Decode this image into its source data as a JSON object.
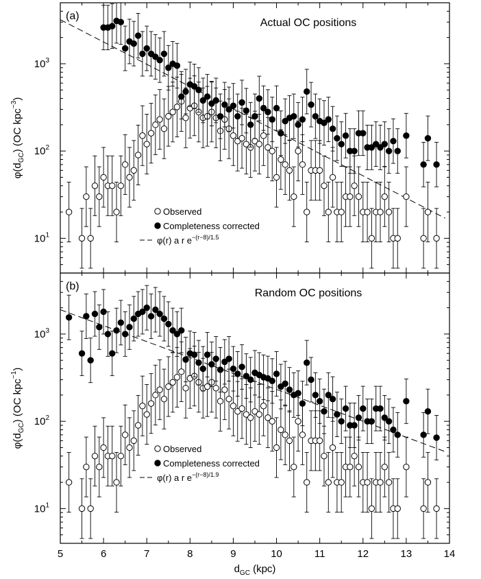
{
  "figure": {
    "xlabel_main": "d",
    "xlabel_sub": "GC",
    "xlabel_unit": " (kpc)",
    "xticks": [
      "5",
      "6",
      "7",
      "8",
      "9",
      "10",
      "11",
      "12",
      "13",
      "14"
    ]
  },
  "chart_data": [
    {
      "type": "scatter",
      "panel_label": "(a)",
      "title": "Actual OC positions",
      "ylabel_main": "φ(d",
      "ylabel_sub": "GC",
      "ylabel_mid": ") (OC kpc",
      "ylabel_sup": "−3",
      "ylabel_end": ")",
      "yscale": "log",
      "xlim": [
        5,
        14
      ],
      "ylim": [
        4,
        5000
      ],
      "ytick_labels": [
        "10",
        "10",
        "10"
      ],
      "ytick_exps": [
        "1",
        "2",
        "3"
      ],
      "legend": {
        "observed": "Observed",
        "corrected": "Completeness corrected",
        "fit_prefix": "φ(r) a r e",
        "fit_exp": "−(r−8)/1.5"
      },
      "fit": {
        "x": [
          5.0,
          13.9
        ],
        "y": [
          3200,
          17
        ]
      },
      "series": [
        {
          "name": "Observed",
          "marker": "open",
          "x": [
            5.2,
            5.5,
            5.6,
            5.7,
            5.8,
            5.9,
            6.0,
            6.1,
            6.2,
            6.3,
            6.4,
            6.5,
            6.6,
            6.7,
            6.8,
            6.9,
            7.0,
            7.1,
            7.2,
            7.3,
            7.4,
            7.5,
            7.6,
            7.7,
            7.8,
            7.9,
            8.0,
            8.1,
            8.2,
            8.3,
            8.4,
            8.5,
            8.6,
            8.7,
            8.8,
            8.9,
            9.0,
            9.1,
            9.2,
            9.3,
            9.4,
            9.5,
            9.6,
            9.7,
            9.8,
            9.9,
            10.0,
            10.1,
            10.2,
            10.3,
            10.4,
            10.5,
            10.6,
            10.7,
            10.8,
            10.9,
            11.0,
            11.1,
            11.2,
            11.3,
            11.4,
            11.5,
            11.6,
            11.7,
            11.8,
            11.9,
            12.0,
            12.1,
            12.2,
            12.3,
            12.4,
            12.5,
            12.6,
            12.7,
            12.8,
            13.0,
            13.4,
            13.5,
            13.7
          ],
          "y": [
            20,
            10,
            30,
            10,
            40,
            30,
            50,
            40,
            40,
            20,
            40,
            70,
            50,
            60,
            90,
            150,
            120,
            160,
            200,
            230,
            180,
            250,
            280,
            320,
            370,
            240,
            310,
            330,
            280,
            240,
            250,
            280,
            240,
            170,
            230,
            180,
            150,
            130,
            140,
            120,
            110,
            130,
            120,
            150,
            110,
            100,
            50,
            80,
            70,
            60,
            30,
            100,
            70,
            20,
            60,
            60,
            60,
            40,
            20,
            50,
            20,
            20,
            30,
            30,
            40,
            30,
            20,
            20,
            10,
            20,
            20,
            30,
            20,
            10,
            10,
            30,
            10,
            20,
            10
          ]
        },
        {
          "name": "Completeness corrected",
          "marker": "filled",
          "x": [
            6.0,
            6.1,
            6.2,
            6.3,
            6.4,
            6.5,
            6.6,
            6.7,
            6.8,
            6.9,
            7.0,
            7.1,
            7.2,
            7.3,
            7.4,
            7.5,
            7.6,
            7.7,
            7.8,
            7.9,
            8.0,
            8.1,
            8.2,
            8.3,
            8.4,
            8.5,
            8.6,
            8.7,
            8.8,
            8.9,
            9.0,
            9.1,
            9.2,
            9.3,
            9.4,
            9.5,
            9.6,
            9.7,
            9.8,
            9.9,
            10.0,
            10.1,
            10.2,
            10.3,
            10.4,
            10.5,
            10.6,
            10.7,
            10.8,
            10.9,
            11.0,
            11.1,
            11.2,
            11.3,
            11.4,
            11.5,
            11.6,
            11.7,
            11.8,
            11.9,
            12.0,
            12.1,
            12.2,
            12.3,
            12.4,
            12.5,
            12.6,
            12.7,
            12.8,
            13.0,
            13.4,
            13.5,
            13.7
          ],
          "y": [
            2600,
            2600,
            2700,
            3100,
            3000,
            1500,
            1800,
            1700,
            2100,
            1300,
            1500,
            1300,
            1200,
            1100,
            1300,
            900,
            1000,
            950,
            420,
            480,
            580,
            550,
            500,
            380,
            420,
            350,
            380,
            250,
            340,
            300,
            330,
            250,
            360,
            290,
            200,
            250,
            400,
            310,
            280,
            230,
            310,
            160,
            220,
            240,
            250,
            200,
            230,
            480,
            340,
            250,
            220,
            210,
            230,
            180,
            140,
            120,
            150,
            100,
            100,
            160,
            160,
            110,
            110,
            120,
            110,
            120,
            100,
            130,
            100,
            150,
            70,
            140,
            70
          ]
        }
      ]
    },
    {
      "type": "scatter",
      "panel_label": "(b)",
      "title": "Random OC positions",
      "ylabel_main": "φ(d",
      "ylabel_sub": "GC",
      "ylabel_mid": ") (OC kpc",
      "ylabel_sup": "−1",
      "ylabel_end": ")",
      "yscale": "log",
      "xlim": [
        5,
        14
      ],
      "ylim": [
        4,
        5000
      ],
      "ytick_labels": [
        "10",
        "10",
        "10"
      ],
      "ytick_exps": [
        "1",
        "2",
        "3"
      ],
      "legend": {
        "observed": "Observed",
        "corrected": "Completeness corrected",
        "fit_prefix": "φ(r) a r e",
        "fit_exp": "−(r−8)/1.9"
      },
      "fit": {
        "x": [
          5.0,
          13.9
        ],
        "y": [
          1900,
          45
        ]
      },
      "series": [
        {
          "name": "Observed",
          "marker": "open",
          "x": [
            5.2,
            5.5,
            5.6,
            5.7,
            5.8,
            5.9,
            6.0,
            6.1,
            6.2,
            6.3,
            6.4,
            6.5,
            6.6,
            6.7,
            6.8,
            6.9,
            7.0,
            7.1,
            7.2,
            7.3,
            7.4,
            7.5,
            7.6,
            7.7,
            7.8,
            7.9,
            8.0,
            8.1,
            8.2,
            8.3,
            8.4,
            8.5,
            8.6,
            8.7,
            8.8,
            8.9,
            9.0,
            9.1,
            9.2,
            9.3,
            9.4,
            9.5,
            9.6,
            9.7,
            9.8,
            9.9,
            10.0,
            10.1,
            10.2,
            10.3,
            10.4,
            10.5,
            10.6,
            10.7,
            10.8,
            10.9,
            11.0,
            11.1,
            11.2,
            11.3,
            11.4,
            11.5,
            11.6,
            11.7,
            11.8,
            11.9,
            12.0,
            12.1,
            12.2,
            12.3,
            12.4,
            12.5,
            12.6,
            12.7,
            12.8,
            13.0,
            13.4,
            13.5,
            13.7
          ],
          "y": [
            20,
            10,
            30,
            10,
            40,
            30,
            50,
            40,
            40,
            20,
            40,
            70,
            50,
            60,
            90,
            150,
            120,
            160,
            200,
            230,
            180,
            250,
            280,
            320,
            370,
            240,
            310,
            330,
            280,
            240,
            250,
            280,
            240,
            170,
            230,
            180,
            150,
            130,
            140,
            120,
            110,
            130,
            120,
            150,
            110,
            100,
            50,
            80,
            70,
            60,
            30,
            100,
            70,
            20,
            60,
            60,
            60,
            40,
            20,
            50,
            20,
            20,
            30,
            30,
            40,
            30,
            20,
            20,
            10,
            20,
            20,
            30,
            20,
            10,
            10,
            30,
            10,
            20,
            10
          ]
        },
        {
          "name": "Completeness corrected",
          "marker": "filled",
          "x": [
            5.2,
            5.5,
            5.6,
            5.7,
            5.8,
            5.9,
            6.0,
            6.1,
            6.2,
            6.3,
            6.4,
            6.5,
            6.6,
            6.7,
            6.8,
            6.9,
            7.0,
            7.1,
            7.2,
            7.3,
            7.4,
            7.5,
            7.6,
            7.7,
            7.8,
            7.9,
            8.0,
            8.1,
            8.2,
            8.3,
            8.4,
            8.5,
            8.6,
            8.7,
            8.8,
            8.9,
            9.0,
            9.1,
            9.2,
            9.3,
            9.4,
            9.5,
            9.6,
            9.7,
            9.8,
            9.9,
            10.0,
            10.1,
            10.2,
            10.3,
            10.4,
            10.5,
            10.6,
            10.7,
            10.8,
            10.9,
            11.0,
            11.1,
            11.2,
            11.3,
            11.4,
            11.5,
            11.6,
            11.7,
            11.8,
            11.9,
            12.0,
            12.1,
            12.2,
            12.3,
            12.4,
            12.5,
            12.6,
            12.7,
            12.8,
            13.0,
            13.4,
            13.5,
            13.7
          ],
          "y": [
            1550,
            600,
            1600,
            500,
            1700,
            1200,
            1800,
            1000,
            600,
            1100,
            1350,
            1000,
            1200,
            1500,
            1700,
            1800,
            2000,
            1600,
            1900,
            1700,
            1500,
            1300,
            1100,
            1000,
            1100,
            510,
            600,
            580,
            470,
            400,
            580,
            450,
            520,
            390,
            480,
            520,
            400,
            350,
            420,
            330,
            300,
            360,
            340,
            320,
            310,
            290,
            350,
            250,
            270,
            230,
            200,
            210,
            160,
            470,
            300,
            200,
            170,
            130,
            200,
            180,
            120,
            100,
            140,
            90,
            90,
            110,
            140,
            100,
            100,
            140,
            140,
            110,
            100,
            80,
            70,
            170,
            70,
            130,
            65
          ]
        }
      ]
    }
  ]
}
